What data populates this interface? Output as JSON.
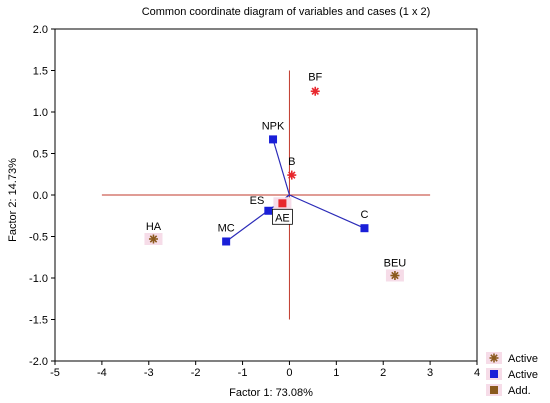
{
  "chart_data": {
    "type": "scatter",
    "title": "Common coordinate diagram of variables and cases (1 x 2)",
    "xlabel": "Factor 1: 73.08%",
    "ylabel": "Factor 2: 14.73%",
    "xlim": [
      -5,
      4
    ],
    "ylim": [
      -2.0,
      2.0
    ],
    "xticks": [
      "-5",
      "-4",
      "-3",
      "-2",
      "-1",
      "0",
      "1",
      "2",
      "3",
      "4"
    ],
    "yticks": [
      "-2.0",
      "-1.5",
      "-1.0",
      "-0.5",
      "0.0",
      "0.5",
      "1.0",
      "1.5",
      "2.0"
    ],
    "grid": false,
    "reference_lines": {
      "horizontal": {
        "y": 0.0,
        "x_from": -4,
        "x_to": 3
      },
      "vertical": {
        "x": 0.0,
        "y_from": -1.5,
        "y_to": 1.5
      }
    },
    "series": [
      {
        "name": "Active",
        "marker": "star",
        "color": "#e8282e",
        "points": [
          {
            "label": "BF",
            "x": 0.55,
            "y": 1.25
          },
          {
            "label": "B",
            "x": 0.05,
            "y": 0.24
          }
        ]
      },
      {
        "name": "Active",
        "marker": "square",
        "color": "#1a1fd8",
        "points": [
          {
            "label": "NPK",
            "x": -0.35,
            "y": 0.67
          },
          {
            "label": "ES",
            "x": -0.45,
            "y": -0.19
          },
          {
            "label": "MC",
            "x": -1.35,
            "y": -0.56
          },
          {
            "label": "C",
            "x": 1.6,
            "y": -0.4
          },
          {
            "label": "AE",
            "x": -0.15,
            "y": -0.1
          }
        ]
      },
      {
        "name": "Add.",
        "marker": "star",
        "color": "#8b5a1e",
        "points": [
          {
            "label": "HA",
            "x": -2.9,
            "y": -0.53
          },
          {
            "label": "BEU",
            "x": 2.25,
            "y": -0.97
          }
        ]
      }
    ],
    "vectors": [
      "NPK",
      "ES",
      "MC",
      "C"
    ],
    "legend": {
      "placement": "bottom-right",
      "entries": [
        {
          "label": "Active",
          "marker": "star",
          "color": "#8b5a1e"
        },
        {
          "label": "Active",
          "marker": "square",
          "color": "#1a1fd8"
        },
        {
          "label": "Add.",
          "marker": "square",
          "color": "#8b5a1e"
        }
      ]
    },
    "colors": {
      "axis_line": "#c0392b",
      "vector": "#2b2bb8",
      "highlight": "#f6dce8",
      "frame": "#000000"
    }
  }
}
